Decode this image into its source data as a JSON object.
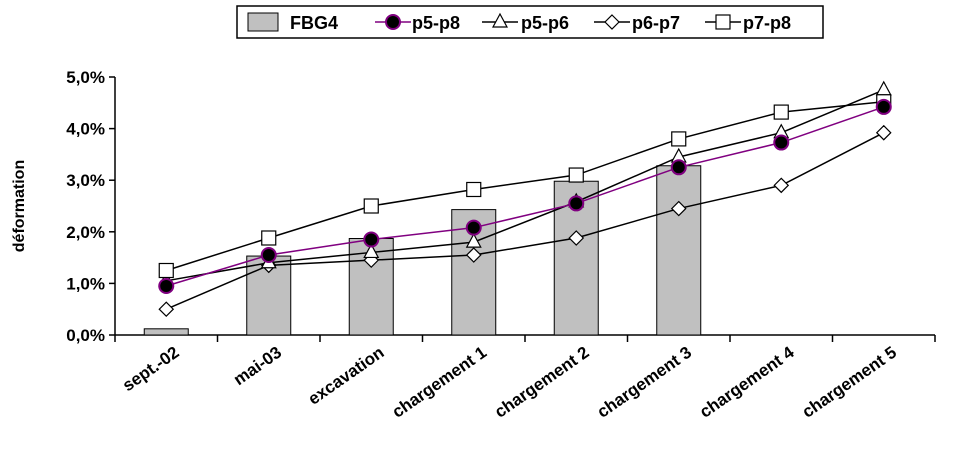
{
  "chart_data": {
    "type": "bar",
    "title": "",
    "xlabel": "",
    "ylabel": "déformation",
    "ylim": [
      0,
      5
    ],
    "yticks": [
      0,
      1,
      2,
      3,
      4,
      5
    ],
    "ytick_labels": [
      "0,0%",
      "1,0%",
      "2,0%",
      "3,0%",
      "4,0%",
      "5,0%"
    ],
    "categories": [
      "sept.-02",
      "mai-03",
      "excavation",
      "chargement 1",
      "chargement 2",
      "chargement 3",
      "chargement 4",
      "chargement 5"
    ],
    "grid": false,
    "legend": "top-center",
    "series": [
      {
        "name": "FBG4",
        "kind": "bar",
        "color": "#c0c0c0",
        "values": [
          0.12,
          1.53,
          1.87,
          2.43,
          2.98,
          3.28,
          null,
          null
        ]
      },
      {
        "name": "p5-p8",
        "kind": "line",
        "marker": "circle",
        "line_color": "#800080",
        "values": [
          0.95,
          1.55,
          1.85,
          2.08,
          2.55,
          3.25,
          3.73,
          4.42
        ]
      },
      {
        "name": "p5-p6",
        "kind": "line",
        "marker": "triangle",
        "line_color": "#000000",
        "values": [
          1.05,
          1.4,
          1.6,
          1.8,
          2.58,
          3.45,
          3.92,
          4.75
        ]
      },
      {
        "name": "p6-p7",
        "kind": "line",
        "marker": "diamond",
        "line_color": "#000000",
        "values": [
          0.5,
          1.35,
          1.45,
          1.55,
          1.88,
          2.45,
          2.9,
          3.92
        ]
      },
      {
        "name": "p7-p8",
        "kind": "line",
        "marker": "square",
        "line_color": "#000000",
        "values": [
          1.25,
          1.88,
          2.5,
          2.82,
          3.1,
          3.8,
          4.32,
          4.52
        ]
      }
    ]
  }
}
